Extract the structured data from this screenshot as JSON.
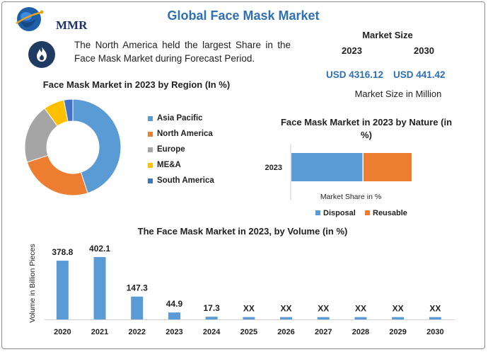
{
  "header": {
    "title": "Global Face Mask Market",
    "logo_text": "MMR"
  },
  "info": {
    "text": "The North America held the largest Share in the Face Mask Market during Forecast Period.",
    "icon": "flame-icon"
  },
  "market_size": {
    "title": "Market Size",
    "year_a": "2023",
    "year_b": "2030",
    "value_a": "USD 4316.12",
    "value_b": "USD 441.42",
    "unit_label": "Market Size in Million"
  },
  "colors": {
    "blue": "#5b9bd5",
    "orange": "#ed7d31",
    "gray": "#a5a5a5",
    "yellow": "#ffc000",
    "darkblue": "#4472c4",
    "title_blue": "#2e6fb5"
  },
  "chart_data": [
    {
      "type": "pie",
      "title": "Face Mask Market in 2023 by Region (In %)",
      "categories": [
        "Asia Pacific",
        "North America",
        "Europe",
        "ME&A",
        "South America"
      ],
      "values": [
        45,
        25,
        20,
        7,
        3
      ],
      "colors": [
        "#5b9bd5",
        "#ed7d31",
        "#a5a5a5",
        "#ffc000",
        "#4472c4"
      ],
      "legend": "right"
    },
    {
      "type": "bar",
      "orientation": "horizontal",
      "stacked": true,
      "title": "Face Mask Market in 2023 by Nature (in %)",
      "categories": [
        "2023"
      ],
      "series": [
        {
          "name": "Disposal",
          "values": [
            60
          ]
        },
        {
          "name": "Reusable",
          "values": [
            40
          ]
        }
      ],
      "xlabel": "Market Share in %",
      "legend": "bottom"
    },
    {
      "type": "bar",
      "title": "The Face Mask Market in 2023, by Volume (in %)",
      "ylabel": "Volume in Billion Pieces",
      "categories": [
        "2020",
        "2021",
        "2022",
        "2023",
        "2024",
        "2025",
        "2026",
        "2027",
        "2028",
        "2029",
        "2030"
      ],
      "values": [
        378.8,
        402.1,
        147.3,
        44.9,
        17.3,
        15,
        15,
        15,
        15,
        15,
        15
      ],
      "labels": [
        "378.8",
        "402.1",
        "147.3",
        "44.9",
        "17.3",
        "XX",
        "XX",
        "XX",
        "XX",
        "XX",
        "XX"
      ],
      "ylim": [
        0,
        420
      ]
    }
  ]
}
